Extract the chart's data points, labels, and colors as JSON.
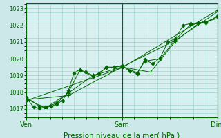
{
  "title": "Pression niveau de la mer( hPa )",
  "bg_color": "#cce8e8",
  "plot_bg_color": "#d8f0f0",
  "grid_color": "#99cccc",
  "line_color": "#006600",
  "marker_color": "#006600",
  "ylim": [
    1016.5,
    1023.3
  ],
  "yticks": [
    1017,
    1018,
    1019,
    1020,
    1021,
    1022,
    1023
  ],
  "xtick_labels": [
    "Ven",
    "Sam",
    "Dim"
  ],
  "xtick_positions": [
    0.0,
    0.5,
    1.0
  ],
  "series": [
    {
      "x": [
        0.0,
        0.04,
        0.07,
        0.1,
        0.13,
        0.16,
        0.19,
        0.22,
        0.25,
        0.28,
        0.31,
        0.35,
        0.38,
        0.42,
        0.46,
        0.5,
        0.54,
        0.58,
        0.62,
        0.66,
        0.7,
        0.74,
        0.78,
        0.82,
        0.86,
        0.9,
        0.94,
        1.0
      ],
      "y": [
        1017.65,
        1017.1,
        1017.05,
        1017.1,
        1017.15,
        1017.3,
        1017.5,
        1018.1,
        1019.15,
        1019.35,
        1019.2,
        1019.0,
        1019.1,
        1019.5,
        1019.5,
        1019.6,
        1019.25,
        1019.1,
        1019.95,
        1019.7,
        1020.05,
        1021.0,
        1021.2,
        1022.0,
        1022.1,
        1022.15,
        1022.2,
        1022.5
      ],
      "marker": "D",
      "ms": 2.5
    },
    {
      "x": [
        0.0,
        0.07,
        0.1,
        0.16,
        0.22,
        0.28,
        0.35,
        0.42,
        0.5,
        0.58,
        0.62,
        0.7,
        0.78,
        0.86,
        0.94,
        1.0
      ],
      "y": [
        1017.7,
        1017.15,
        1017.1,
        1017.35,
        1018.0,
        1019.3,
        1018.95,
        1019.45,
        1019.55,
        1019.15,
        1019.85,
        1020.0,
        1021.15,
        1022.05,
        1022.15,
        1022.55
      ],
      "marker": "D",
      "ms": 2.5
    },
    {
      "x": [
        0.0,
        0.1,
        0.22,
        0.35,
        0.5,
        0.65,
        0.78,
        0.9,
        1.0
      ],
      "y": [
        1017.6,
        1017.05,
        1017.95,
        1019.0,
        1019.5,
        1019.2,
        1021.05,
        1022.1,
        1022.4
      ],
      "marker": "+",
      "ms": 4
    },
    {
      "x": [
        0.0,
        0.22,
        0.5,
        0.78,
        1.0
      ],
      "y": [
        1017.55,
        1017.8,
        1019.5,
        1021.1,
        1022.8
      ],
      "marker": "+",
      "ms": 4
    },
    {
      "x": [
        0.0,
        0.5,
        1.0
      ],
      "y": [
        1017.5,
        1019.45,
        1022.9
      ],
      "marker": "D",
      "ms": 2.0
    }
  ]
}
